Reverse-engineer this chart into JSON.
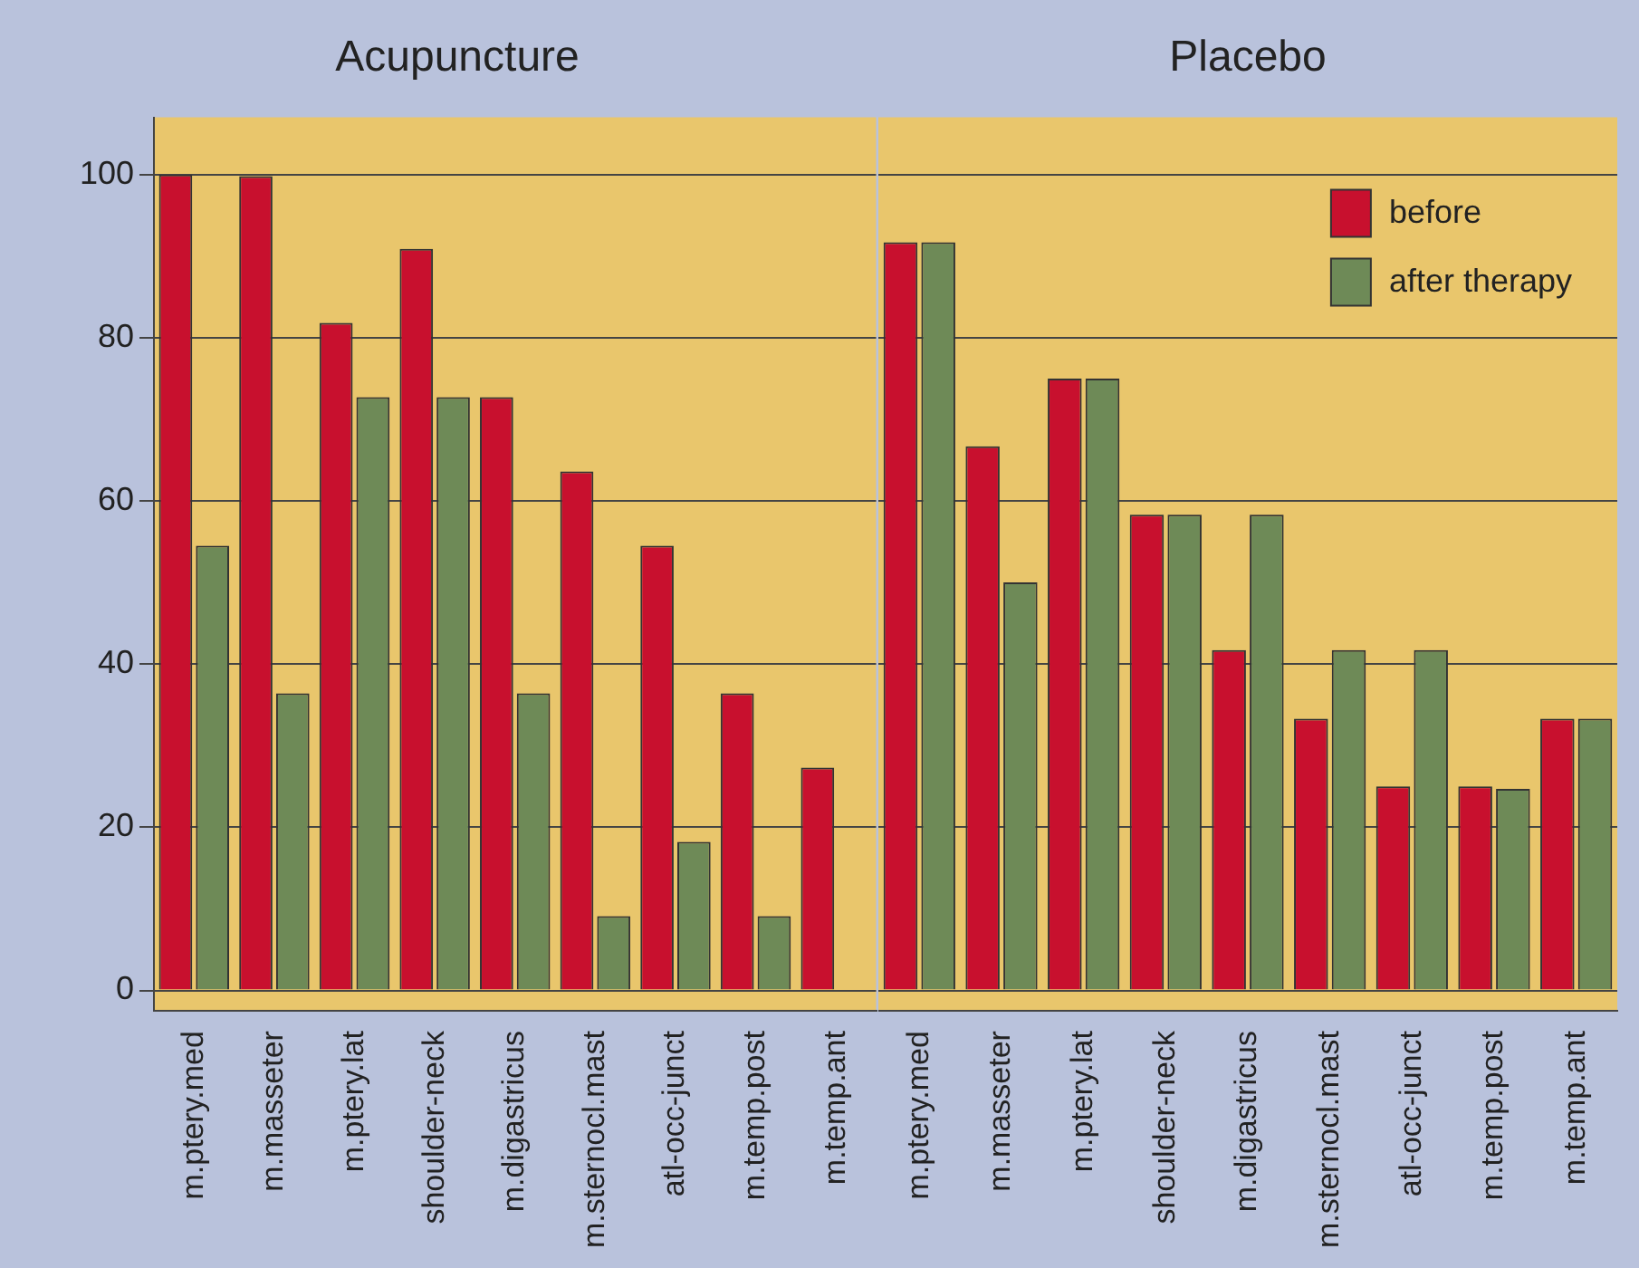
{
  "chart_data": [
    {
      "type": "bar",
      "title": "Acupuncture",
      "categories": [
        "m.ptery.med",
        "m.masseter",
        "m.ptery.lat",
        "shoulder-neck",
        "m.digastricus",
        "m.sternocl.mast",
        "atl-occ-junct",
        "m.temp.post",
        "m.temp.ant"
      ],
      "series": [
        {
          "color": "#c8102e",
          "values": [
            100,
            99.8,
            81.8,
            90.9,
            72.7,
            63.6,
            54.5,
            36.4,
            27.3
          ]
        },
        {
          "color": "#6e8a57",
          "values": [
            54.5,
            36.4,
            72.7,
            72.7,
            36.4,
            9.1,
            18.2,
            9.1,
            0
          ]
        }
      ],
      "ylim": [
        -2.5,
        107
      ],
      "yticks": [
        0,
        20,
        40,
        60,
        80,
        100
      ],
      "grid": "y",
      "legend": false
    },
    {
      "type": "bar",
      "title": "Placebo",
      "categories": [
        "m.ptery.med",
        "m.masseter",
        "m.ptery.lat",
        "shoulder-neck",
        "m.digastricus",
        "m.sternocl.mast",
        "atl-occ-junct",
        "m.temp.post",
        "m.temp.ant"
      ],
      "series": [
        {
          "name": "before",
          "color": "#c8102e",
          "values": [
            91.7,
            66.7,
            75,
            58.3,
            41.7,
            33.3,
            25,
            25,
            33.3
          ]
        },
        {
          "name": "after therapy",
          "color": "#6e8a57",
          "values": [
            91.7,
            50,
            75,
            58.3,
            58.3,
            41.7,
            41.7,
            24.7,
            33.3
          ]
        }
      ],
      "ylim": [
        -2.5,
        107
      ],
      "yticks": [
        0,
        20,
        40,
        60,
        80,
        100
      ],
      "grid": "y",
      "legend": "top right",
      "tick_labels": "x"
    }
  ]
}
